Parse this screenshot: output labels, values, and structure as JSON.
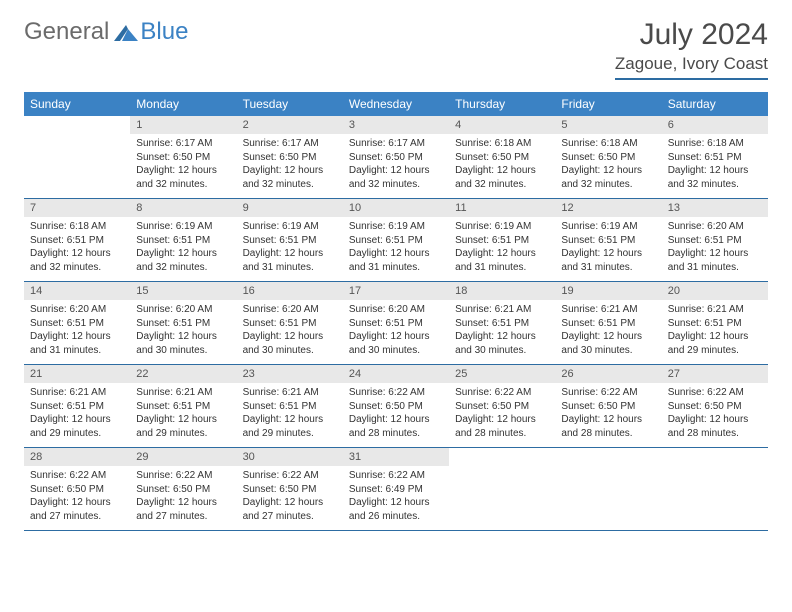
{
  "logo": {
    "general": "General",
    "blue": "Blue"
  },
  "title": "July 2024",
  "location": "Zagoue, Ivory Coast",
  "colors": {
    "header_bg": "#3b82c4",
    "header_text": "#ffffff",
    "daynum_bg": "#e8e8e8",
    "rule": "#2d6ca2",
    "body_text": "#333333",
    "title_text": "#4a4a4a",
    "logo_gray": "#6b6b6b",
    "logo_blue": "#3b82c4"
  },
  "weekdays": [
    "Sunday",
    "Monday",
    "Tuesday",
    "Wednesday",
    "Thursday",
    "Friday",
    "Saturday"
  ],
  "weeks": [
    [
      {
        "n": "",
        "sr": "",
        "ss": "",
        "dl1": "",
        "dl2": ""
      },
      {
        "n": "1",
        "sr": "Sunrise: 6:17 AM",
        "ss": "Sunset: 6:50 PM",
        "dl1": "Daylight: 12 hours",
        "dl2": "and 32 minutes."
      },
      {
        "n": "2",
        "sr": "Sunrise: 6:17 AM",
        "ss": "Sunset: 6:50 PM",
        "dl1": "Daylight: 12 hours",
        "dl2": "and 32 minutes."
      },
      {
        "n": "3",
        "sr": "Sunrise: 6:17 AM",
        "ss": "Sunset: 6:50 PM",
        "dl1": "Daylight: 12 hours",
        "dl2": "and 32 minutes."
      },
      {
        "n": "4",
        "sr": "Sunrise: 6:18 AM",
        "ss": "Sunset: 6:50 PM",
        "dl1": "Daylight: 12 hours",
        "dl2": "and 32 minutes."
      },
      {
        "n": "5",
        "sr": "Sunrise: 6:18 AM",
        "ss": "Sunset: 6:50 PM",
        "dl1": "Daylight: 12 hours",
        "dl2": "and 32 minutes."
      },
      {
        "n": "6",
        "sr": "Sunrise: 6:18 AM",
        "ss": "Sunset: 6:51 PM",
        "dl1": "Daylight: 12 hours",
        "dl2": "and 32 minutes."
      }
    ],
    [
      {
        "n": "7",
        "sr": "Sunrise: 6:18 AM",
        "ss": "Sunset: 6:51 PM",
        "dl1": "Daylight: 12 hours",
        "dl2": "and 32 minutes."
      },
      {
        "n": "8",
        "sr": "Sunrise: 6:19 AM",
        "ss": "Sunset: 6:51 PM",
        "dl1": "Daylight: 12 hours",
        "dl2": "and 32 minutes."
      },
      {
        "n": "9",
        "sr": "Sunrise: 6:19 AM",
        "ss": "Sunset: 6:51 PM",
        "dl1": "Daylight: 12 hours",
        "dl2": "and 31 minutes."
      },
      {
        "n": "10",
        "sr": "Sunrise: 6:19 AM",
        "ss": "Sunset: 6:51 PM",
        "dl1": "Daylight: 12 hours",
        "dl2": "and 31 minutes."
      },
      {
        "n": "11",
        "sr": "Sunrise: 6:19 AM",
        "ss": "Sunset: 6:51 PM",
        "dl1": "Daylight: 12 hours",
        "dl2": "and 31 minutes."
      },
      {
        "n": "12",
        "sr": "Sunrise: 6:19 AM",
        "ss": "Sunset: 6:51 PM",
        "dl1": "Daylight: 12 hours",
        "dl2": "and 31 minutes."
      },
      {
        "n": "13",
        "sr": "Sunrise: 6:20 AM",
        "ss": "Sunset: 6:51 PM",
        "dl1": "Daylight: 12 hours",
        "dl2": "and 31 minutes."
      }
    ],
    [
      {
        "n": "14",
        "sr": "Sunrise: 6:20 AM",
        "ss": "Sunset: 6:51 PM",
        "dl1": "Daylight: 12 hours",
        "dl2": "and 31 minutes."
      },
      {
        "n": "15",
        "sr": "Sunrise: 6:20 AM",
        "ss": "Sunset: 6:51 PM",
        "dl1": "Daylight: 12 hours",
        "dl2": "and 30 minutes."
      },
      {
        "n": "16",
        "sr": "Sunrise: 6:20 AM",
        "ss": "Sunset: 6:51 PM",
        "dl1": "Daylight: 12 hours",
        "dl2": "and 30 minutes."
      },
      {
        "n": "17",
        "sr": "Sunrise: 6:20 AM",
        "ss": "Sunset: 6:51 PM",
        "dl1": "Daylight: 12 hours",
        "dl2": "and 30 minutes."
      },
      {
        "n": "18",
        "sr": "Sunrise: 6:21 AM",
        "ss": "Sunset: 6:51 PM",
        "dl1": "Daylight: 12 hours",
        "dl2": "and 30 minutes."
      },
      {
        "n": "19",
        "sr": "Sunrise: 6:21 AM",
        "ss": "Sunset: 6:51 PM",
        "dl1": "Daylight: 12 hours",
        "dl2": "and 30 minutes."
      },
      {
        "n": "20",
        "sr": "Sunrise: 6:21 AM",
        "ss": "Sunset: 6:51 PM",
        "dl1": "Daylight: 12 hours",
        "dl2": "and 29 minutes."
      }
    ],
    [
      {
        "n": "21",
        "sr": "Sunrise: 6:21 AM",
        "ss": "Sunset: 6:51 PM",
        "dl1": "Daylight: 12 hours",
        "dl2": "and 29 minutes."
      },
      {
        "n": "22",
        "sr": "Sunrise: 6:21 AM",
        "ss": "Sunset: 6:51 PM",
        "dl1": "Daylight: 12 hours",
        "dl2": "and 29 minutes."
      },
      {
        "n": "23",
        "sr": "Sunrise: 6:21 AM",
        "ss": "Sunset: 6:51 PM",
        "dl1": "Daylight: 12 hours",
        "dl2": "and 29 minutes."
      },
      {
        "n": "24",
        "sr": "Sunrise: 6:22 AM",
        "ss": "Sunset: 6:50 PM",
        "dl1": "Daylight: 12 hours",
        "dl2": "and 28 minutes."
      },
      {
        "n": "25",
        "sr": "Sunrise: 6:22 AM",
        "ss": "Sunset: 6:50 PM",
        "dl1": "Daylight: 12 hours",
        "dl2": "and 28 minutes."
      },
      {
        "n": "26",
        "sr": "Sunrise: 6:22 AM",
        "ss": "Sunset: 6:50 PM",
        "dl1": "Daylight: 12 hours",
        "dl2": "and 28 minutes."
      },
      {
        "n": "27",
        "sr": "Sunrise: 6:22 AM",
        "ss": "Sunset: 6:50 PM",
        "dl1": "Daylight: 12 hours",
        "dl2": "and 28 minutes."
      }
    ],
    [
      {
        "n": "28",
        "sr": "Sunrise: 6:22 AM",
        "ss": "Sunset: 6:50 PM",
        "dl1": "Daylight: 12 hours",
        "dl2": "and 27 minutes."
      },
      {
        "n": "29",
        "sr": "Sunrise: 6:22 AM",
        "ss": "Sunset: 6:50 PM",
        "dl1": "Daylight: 12 hours",
        "dl2": "and 27 minutes."
      },
      {
        "n": "30",
        "sr": "Sunrise: 6:22 AM",
        "ss": "Sunset: 6:50 PM",
        "dl1": "Daylight: 12 hours",
        "dl2": "and 27 minutes."
      },
      {
        "n": "31",
        "sr": "Sunrise: 6:22 AM",
        "ss": "Sunset: 6:49 PM",
        "dl1": "Daylight: 12 hours",
        "dl2": "and 26 minutes."
      },
      {
        "n": "",
        "sr": "",
        "ss": "",
        "dl1": "",
        "dl2": ""
      },
      {
        "n": "",
        "sr": "",
        "ss": "",
        "dl1": "",
        "dl2": ""
      },
      {
        "n": "",
        "sr": "",
        "ss": "",
        "dl1": "",
        "dl2": ""
      }
    ]
  ]
}
